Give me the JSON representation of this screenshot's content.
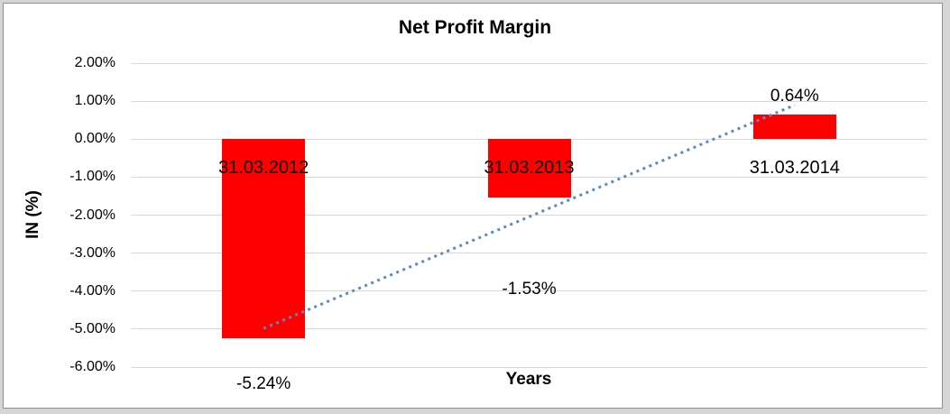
{
  "chart_data": {
    "type": "bar",
    "title": "Net Profit Margin",
    "xlabel": "Years",
    "ylabel": "IN (%)",
    "categories": [
      "31.03.2012",
      "31.03.2013",
      "31.03.2014"
    ],
    "values": [
      -5.24,
      -1.53,
      0.64
    ],
    "data_labels": [
      "-5.24%",
      "-1.53%",
      "0.64%"
    ],
    "y_ticks": [
      {
        "label": "2.00%",
        "value": 2
      },
      {
        "label": "1.00%",
        "value": 1
      },
      {
        "label": "0.00%",
        "value": 0
      },
      {
        "label": "-1.00%",
        "value": -1
      },
      {
        "label": "-2.00%",
        "value": -2
      },
      {
        "label": "-3.00%",
        "value": -3
      },
      {
        "label": "-4.00%",
        "value": -4
      },
      {
        "label": "-5.00%",
        "value": -5
      },
      {
        "label": "-6.00%",
        "value": -6
      }
    ],
    "ylim": [
      -6,
      2
    ],
    "grid": true,
    "legend": "none",
    "colors": {
      "bar": "#ff0000",
      "gridline": "#d9d9d9",
      "trendline": "#5b8ac6",
      "text": "#000000"
    },
    "trendline": {
      "type": "linear",
      "style": "dotted"
    },
    "layout_hints": {
      "data_label_axis_pos": [
        -6.45,
        -3.96,
        1.12
      ],
      "category_label_axis_pos": -0.76,
      "legend_position": "none"
    }
  }
}
